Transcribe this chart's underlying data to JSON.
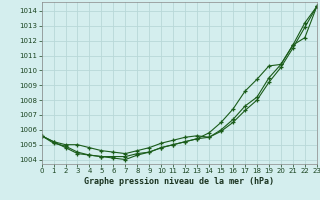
{
  "x": [
    0,
    1,
    2,
    3,
    4,
    5,
    6,
    7,
    8,
    9,
    10,
    11,
    12,
    13,
    14,
    15,
    16,
    17,
    18,
    19,
    20,
    21,
    22,
    23
  ],
  "line1": [
    1005.6,
    1005.2,
    1005.0,
    1005.0,
    1004.8,
    1004.6,
    1004.5,
    1004.4,
    1004.6,
    1004.8,
    1005.1,
    1005.3,
    1005.5,
    1005.6,
    1005.5,
    1006.0,
    1006.7,
    1007.6,
    1008.2,
    1009.5,
    1010.4,
    1011.7,
    1013.2,
    1014.3
  ],
  "line2": [
    1005.6,
    1005.1,
    1004.9,
    1004.5,
    1004.3,
    1004.2,
    1004.1,
    1004.0,
    1004.3,
    1004.5,
    1004.8,
    1005.0,
    1005.2,
    1005.4,
    1005.5,
    1005.9,
    1006.5,
    1007.3,
    1008.0,
    1009.2,
    1010.2,
    1011.5,
    1012.9,
    1014.3
  ],
  "line3": [
    1005.6,
    1005.2,
    1004.8,
    1004.4,
    1004.3,
    1004.2,
    1004.2,
    1004.2,
    1004.4,
    1004.5,
    1004.8,
    1005.0,
    1005.2,
    1005.4,
    1005.8,
    1006.5,
    1007.4,
    1008.6,
    1009.4,
    1010.3,
    1010.4,
    1011.7,
    1012.2,
    1014.3
  ],
  "bg_color": "#d4eeee",
  "grid_color": "#b8d8d8",
  "line_color": "#1a5c1a",
  "xlabel": "Graphe pression niveau de la mer (hPa)",
  "ylim": [
    1003.7,
    1014.6
  ],
  "xlim": [
    0,
    23
  ],
  "yticks": [
    1004,
    1005,
    1006,
    1007,
    1008,
    1009,
    1010,
    1011,
    1012,
    1013,
    1014
  ],
  "xticks": [
    0,
    1,
    2,
    3,
    4,
    5,
    6,
    7,
    8,
    9,
    10,
    11,
    12,
    13,
    14,
    15,
    16,
    17,
    18,
    19,
    20,
    21,
    22,
    23
  ]
}
